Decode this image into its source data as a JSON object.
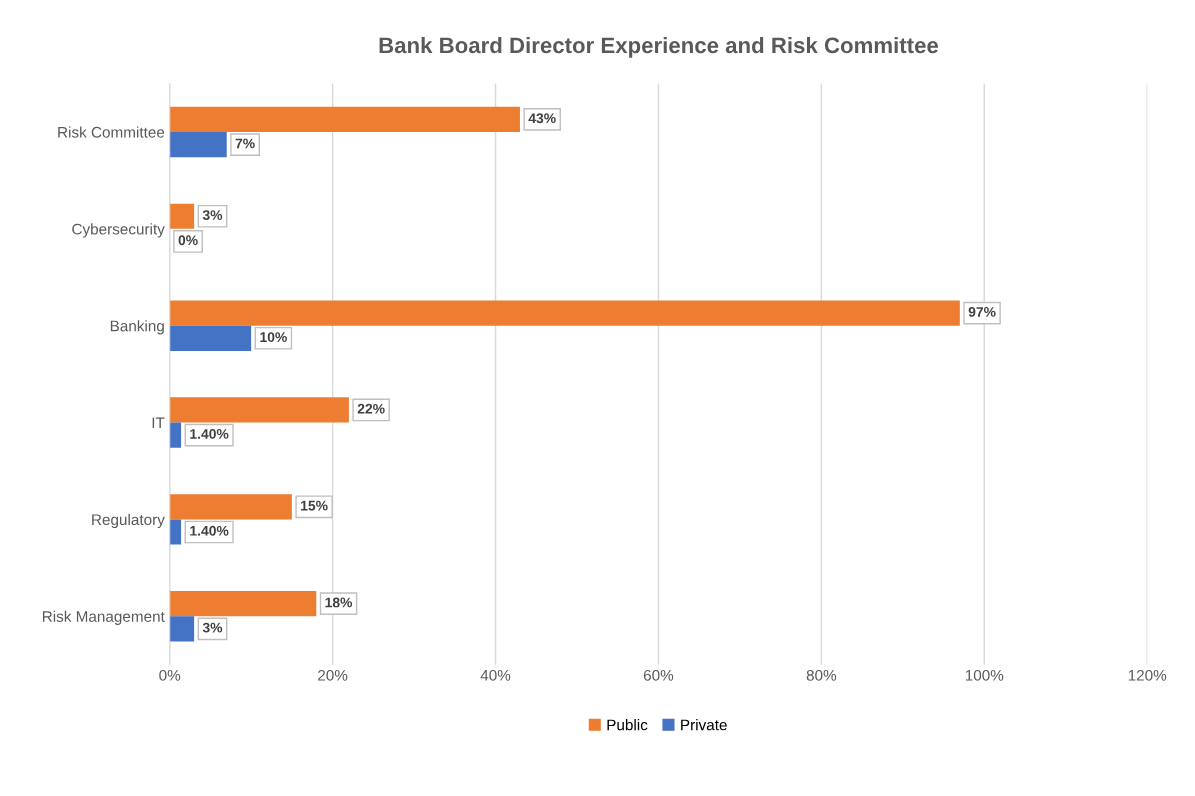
{
  "chart_data": {
    "type": "bar",
    "orientation": "horizontal",
    "title": "Bank Board Director Experience and Risk Committee",
    "categories": [
      "Risk Committee",
      "Cybersecurity",
      "Banking",
      "IT",
      "Regulatory",
      "Risk Management"
    ],
    "series": [
      {
        "name": "Public",
        "color": "#ed7d31",
        "values": [
          43,
          3,
          97,
          22,
          15,
          18
        ],
        "value_labels": [
          "43%",
          "3%",
          "97%",
          "22%",
          "15%",
          "18%"
        ]
      },
      {
        "name": "Private",
        "color": "#4472c4",
        "values": [
          7,
          0,
          10,
          1.4,
          1.4,
          3
        ],
        "value_labels": [
          "7%",
          "0%",
          "10%",
          "1.40%",
          "1.40%",
          "3%"
        ]
      }
    ],
    "xlim": [
      0,
      120
    ],
    "xticks": [
      {
        "value": 0,
        "label": "0%"
      },
      {
        "value": 20,
        "label": "20%"
      },
      {
        "value": 40,
        "label": "40%"
      },
      {
        "value": 60,
        "label": "60%"
      },
      {
        "value": 80,
        "label": "80%"
      },
      {
        "value": 100,
        "label": "100%"
      },
      {
        "value": 120,
        "label": "120%"
      }
    ],
    "grid": "x",
    "legend": "bottom"
  }
}
